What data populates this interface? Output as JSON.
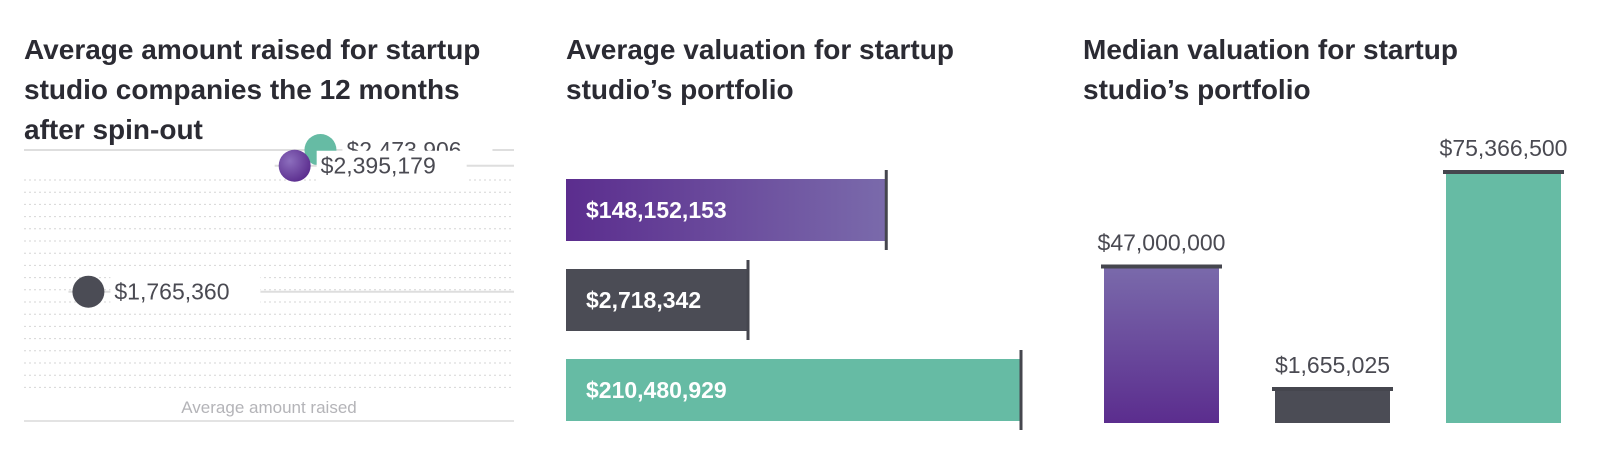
{
  "colors": {
    "purple": "#5b2d8e",
    "purple_light": "#7a6aab",
    "dark": "#4b4c55",
    "teal": "#66bba4"
  },
  "chart_data": [
    {
      "type": "scatter",
      "title": "Average amount raised for startup\nstudio companies the 12 months\nafter spin-out",
      "xlabel": "Average amount raised",
      "points": [
        {
          "value": 2473906,
          "label": "$2,473,906",
          "color": "teal"
        },
        {
          "value": 2395179,
          "label": "$2,395,179",
          "color": "purple"
        },
        {
          "value": 1765360,
          "label": "$1,765,360",
          "color": "dark"
        }
      ]
    },
    {
      "type": "bar",
      "orientation": "horizontal",
      "title": "Average valuation for startup\nstudio’s portfolio",
      "values": [
        148152153,
        2718342,
        210480929
      ],
      "labels": [
        "$148,152,153",
        "$2,718,342",
        "$210,480,929"
      ],
      "colors": [
        "purple",
        "dark",
        "teal"
      ]
    },
    {
      "type": "bar",
      "orientation": "vertical",
      "title": "Median valuation for startup\nstudio’s portfolio",
      "values": [
        47000000,
        1655025,
        75366500
      ],
      "labels": [
        "$47,000,000",
        "$1,655,025",
        "$75,366,500"
      ],
      "colors": [
        "purple",
        "dark",
        "teal"
      ]
    }
  ]
}
